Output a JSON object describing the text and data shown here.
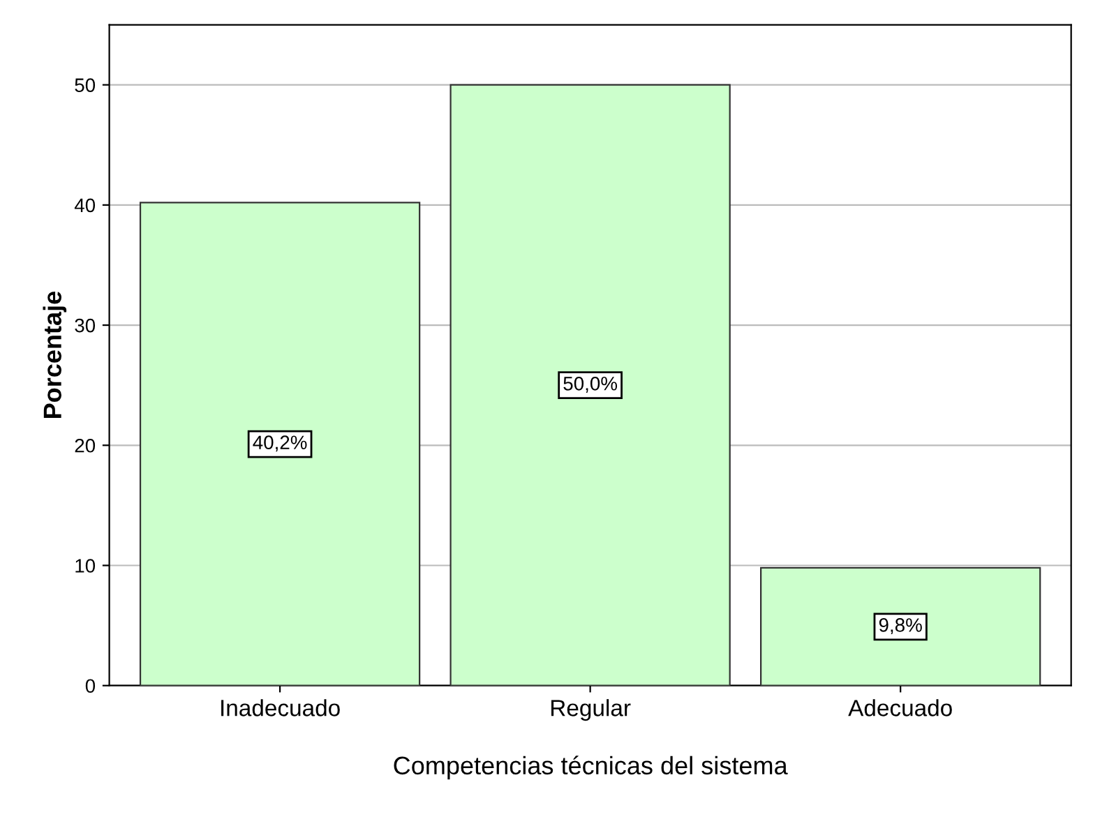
{
  "chart_data": {
    "type": "bar",
    "xlabel": "Competencias técnicas del sistema",
    "ylabel": "Porcentaje",
    "categories": [
      "Inadecuado",
      "Regular",
      "Adecuado"
    ],
    "values": [
      40.2,
      50.0,
      9.8
    ],
    "color": "#ccffcc",
    "value_labels": [
      "40,2%",
      "50,0%",
      "9,8%"
    ],
    "ylim": [
      0,
      55
    ],
    "yticks": [
      0,
      10,
      20,
      30,
      40,
      50
    ],
    "grid": "y",
    "legend": false
  }
}
